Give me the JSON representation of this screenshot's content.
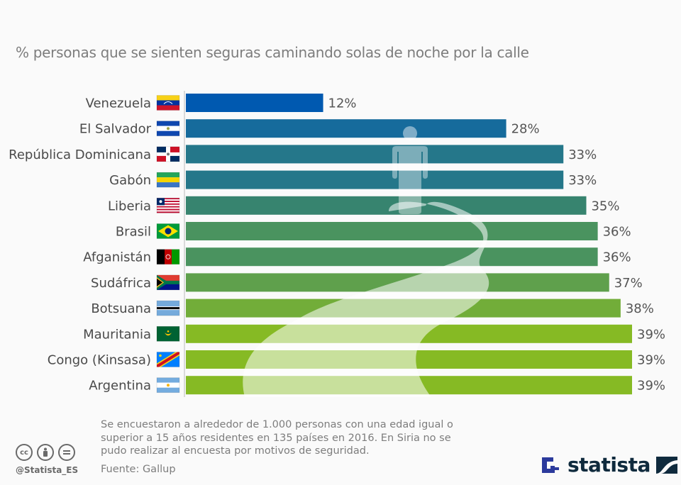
{
  "title": "% personas que se sienten seguras caminando solas de noche por la calle",
  "chart_data": {
    "type": "bar",
    "orientation": "horizontal",
    "title": "% personas que se sienten seguras caminando solas de noche por la calle",
    "xlabel": "",
    "ylabel": "",
    "xlim": [
      0,
      39
    ],
    "grid": false,
    "categories": [
      "Venezuela",
      "El Salvador",
      "República Dominicana",
      "Gabón",
      "Liberia",
      "Brasil",
      "Afganistán",
      "Sudáfrica",
      "Botsuana",
      "Mauritania",
      "Congo (Kinsasa)",
      "Argentina"
    ],
    "values": [
      12,
      28,
      33,
      33,
      35,
      36,
      36,
      37,
      38,
      39,
      39,
      39
    ],
    "value_labels": [
      "12%",
      "28%",
      "33%",
      "33%",
      "35%",
      "36%",
      "36%",
      "37%",
      "38%",
      "39%",
      "39%",
      "39%"
    ],
    "flags": [
      "venezuela-flag",
      "el-salvador-flag",
      "dominican-republic-flag",
      "gabon-flag",
      "liberia-flag",
      "brazil-flag",
      "afghanistan-flag",
      "south-africa-flag",
      "botswana-flag",
      "mauritania-flag",
      "dr-congo-flag",
      "argentina-flag"
    ],
    "colors": [
      "#0059b0",
      "#166b9c",
      "#25778a",
      "#25778a",
      "#37846f",
      "#4a935f",
      "#4a935f",
      "#5fa04c",
      "#72ad39",
      "#86ba24",
      "#86ba24",
      "#86ba24"
    ],
    "background_illustration": "person-walking-path"
  },
  "footer": {
    "note": "Se encuestaron a alrededor de 1.000 personas con una edad igual o superior a 15 años residentes en 135 países en 2016. En Siria no se pudo realizar al encuesta por motivos de seguridad.",
    "source": "Fuente: Gallup",
    "handle": "@Statista_ES",
    "cc_icons": [
      "cc",
      "by",
      "nd"
    ],
    "logo_text": "statista"
  }
}
